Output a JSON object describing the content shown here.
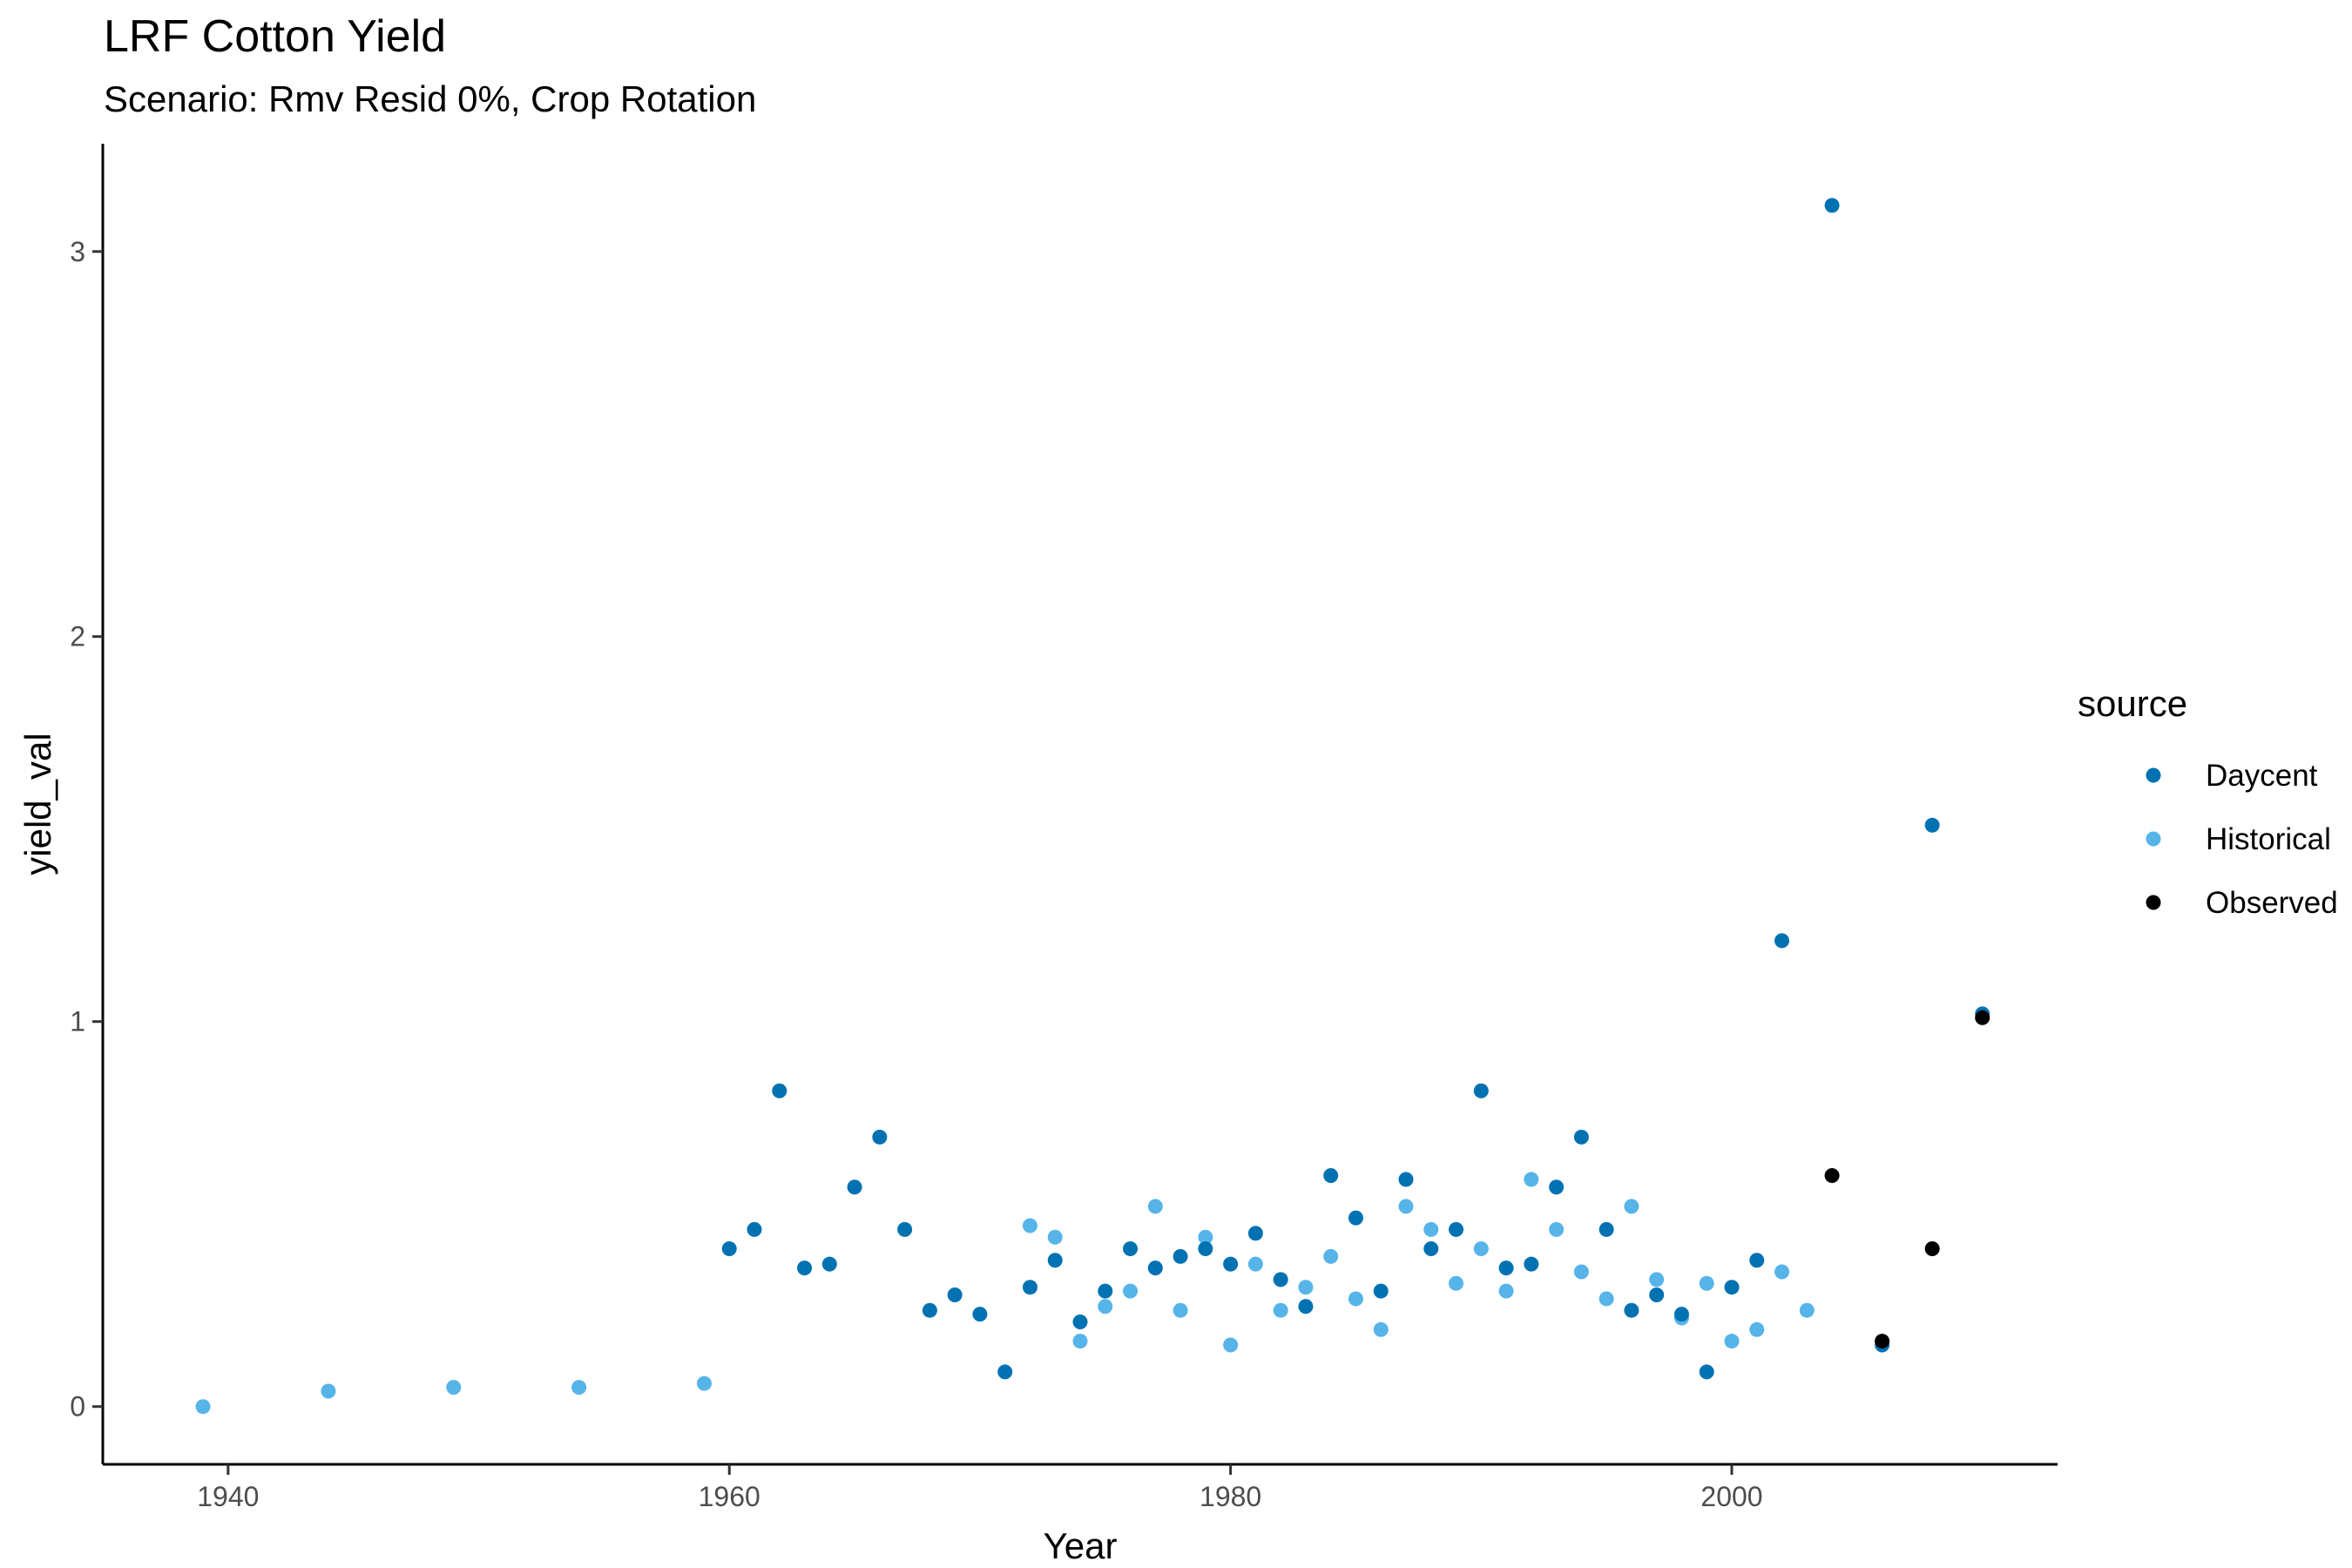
{
  "chart_data": {
    "type": "scatter",
    "title": "LRF Cotton Yield",
    "subtitle": "Scenario: Rmv Resid 0%, Crop Rotation",
    "xlabel": "Year",
    "ylabel": "yield_val",
    "xlim": [
      1935,
      2013
    ],
    "ylim": [
      -0.15,
      3.28
    ],
    "xticks": [
      1940,
      1960,
      1980,
      2000
    ],
    "yticks": [
      0,
      1,
      2,
      3
    ],
    "grid": false,
    "legend": {
      "title": "source",
      "position": "right"
    },
    "series": [
      {
        "name": "Daycent",
        "color": "#0072B2",
        "points": [
          [
            1960,
            0.41
          ],
          [
            1961,
            0.46
          ],
          [
            1962,
            0.82
          ],
          [
            1963,
            0.36
          ],
          [
            1964,
            0.37
          ],
          [
            1965,
            0.57
          ],
          [
            1966,
            0.7
          ],
          [
            1967,
            0.46
          ],
          [
            1968,
            0.25
          ],
          [
            1969,
            0.29
          ],
          [
            1970,
            0.24
          ],
          [
            1971,
            0.09
          ],
          [
            1972,
            0.31
          ],
          [
            1973,
            0.38
          ],
          [
            1974,
            0.22
          ],
          [
            1975,
            0.3
          ],
          [
            1976,
            0.41
          ],
          [
            1977,
            0.36
          ],
          [
            1978,
            0.39
          ],
          [
            1979,
            0.41
          ],
          [
            1980,
            0.37
          ],
          [
            1981,
            0.45
          ],
          [
            1982,
            0.33
          ],
          [
            1983,
            0.26
          ],
          [
            1984,
            0.6
          ],
          [
            1985,
            0.49
          ],
          [
            1986,
            0.3
          ],
          [
            1987,
            0.59
          ],
          [
            1988,
            0.41
          ],
          [
            1989,
            0.46
          ],
          [
            1990,
            0.82
          ],
          [
            1991,
            0.36
          ],
          [
            1992,
            0.37
          ],
          [
            1993,
            0.57
          ],
          [
            1994,
            0.7
          ],
          [
            1995,
            0.46
          ],
          [
            1996,
            0.25
          ],
          [
            1997,
            0.29
          ],
          [
            1998,
            0.24
          ],
          [
            1999,
            0.09
          ],
          [
            2000,
            0.31
          ],
          [
            2001,
            0.38
          ],
          [
            2002,
            1.21
          ],
          [
            2004,
            3.12
          ],
          [
            2006,
            0.16
          ],
          [
            2008,
            1.51
          ],
          [
            2010,
            1.02
          ]
        ]
      },
      {
        "name": "Historical",
        "color": "#56B4E9",
        "points": [
          [
            1939,
            0.0
          ],
          [
            1944,
            0.04
          ],
          [
            1949,
            0.05
          ],
          [
            1954,
            0.05
          ],
          [
            1959,
            0.06
          ],
          [
            1972,
            0.47
          ],
          [
            1973,
            0.44
          ],
          [
            1974,
            0.17
          ],
          [
            1975,
            0.26
          ],
          [
            1976,
            0.3
          ],
          [
            1977,
            0.52
          ],
          [
            1978,
            0.25
          ],
          [
            1979,
            0.44
          ],
          [
            1980,
            0.16
          ],
          [
            1981,
            0.37
          ],
          [
            1982,
            0.25
          ],
          [
            1983,
            0.31
          ],
          [
            1984,
            0.39
          ],
          [
            1985,
            0.28
          ],
          [
            1986,
            0.2
          ],
          [
            1987,
            0.52
          ],
          [
            1988,
            0.46
          ],
          [
            1989,
            0.32
          ],
          [
            1990,
            0.41
          ],
          [
            1991,
            0.3
          ],
          [
            1992,
            0.59
          ],
          [
            1993,
            0.46
          ],
          [
            1994,
            0.35
          ],
          [
            1995,
            0.28
          ],
          [
            1996,
            0.52
          ],
          [
            1997,
            0.33
          ],
          [
            1998,
            0.23
          ],
          [
            1999,
            0.32
          ],
          [
            2000,
            0.17
          ],
          [
            2001,
            0.2
          ],
          [
            2002,
            0.35
          ],
          [
            2003,
            0.25
          ]
        ]
      },
      {
        "name": "Observed",
        "color": "#000000",
        "points": [
          [
            2004,
            0.6
          ],
          [
            2006,
            0.17
          ],
          [
            2008,
            0.41
          ],
          [
            2010,
            1.01
          ]
        ]
      }
    ]
  }
}
